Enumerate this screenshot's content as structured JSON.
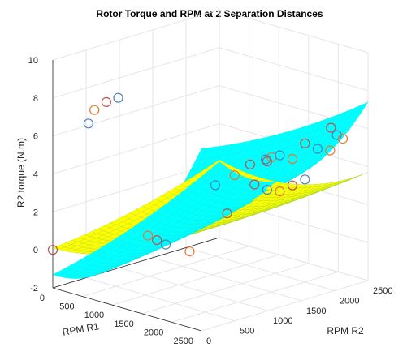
{
  "chart_data": {
    "type": "surface-scatter-3d",
    "title": "Rotor Torque and RPM at 2 Separation Distances",
    "xlabel": "RPM R1",
    "ylabel": "RPM R2",
    "zlabel": "R2 torque (N.m)",
    "xlim": [
      0,
      2500
    ],
    "ylim": [
      0,
      2500
    ],
    "zlim": [
      -2,
      10
    ],
    "x_ticks": [
      0,
      500,
      1000,
      1500,
      2000,
      2500
    ],
    "y_ticks": [
      0,
      500,
      1000,
      1500,
      2000,
      2500
    ],
    "z_ticks": [
      -2,
      0,
      2,
      4,
      6,
      8,
      10
    ],
    "grid": true,
    "surfaces": [
      {
        "name": "",
        "color": "#ffff00",
        "edge_color": "#9acd32"
      },
      {
        "name": "",
        "color": "#00ffff",
        "edge_color": "#00e5e5"
      }
    ],
    "scatter_colors": [
      "#c0504d",
      "#4f81bd",
      "#e07a3a"
    ],
    "scatter": [
      {
        "x": 0,
        "y": 0,
        "z": 0.0
      },
      {
        "x": 600,
        "y": 0,
        "z": 7.2
      },
      {
        "x": 700,
        "y": 0,
        "z": 8.0
      },
      {
        "x": 900,
        "y": 0,
        "z": 8.6
      },
      {
        "x": 1100,
        "y": 0,
        "z": 9.0
      },
      {
        "x": 1600,
        "y": 0,
        "z": 2.2
      },
      {
        "x": 1750,
        "y": 0,
        "z": 2.1
      },
      {
        "x": 1900,
        "y": 0,
        "z": 2.0
      },
      {
        "x": 2300,
        "y": 0,
        "z": 2.0
      },
      {
        "x": 1700,
        "y": 1100,
        "z": 2.3
      },
      {
        "x": 1500,
        "y": 1100,
        "z": 3.6
      },
      {
        "x": 1600,
        "y": 1300,
        "z": 4.0
      },
      {
        "x": 1750,
        "y": 1400,
        "z": 4.6
      },
      {
        "x": 1900,
        "y": 1500,
        "z": 4.9
      },
      {
        "x": 2000,
        "y": 1500,
        "z": 5.1
      },
      {
        "x": 1700,
        "y": 1700,
        "z": 4.4
      },
      {
        "x": 1800,
        "y": 1800,
        "z": 4.7
      },
      {
        "x": 1900,
        "y": 1900,
        "z": 4.5
      },
      {
        "x": 2000,
        "y": 2000,
        "z": 5.3
      },
      {
        "x": 2100,
        "y": 2100,
        "z": 5.0
      },
      {
        "x": 2200,
        "y": 2200,
        "z": 4.9
      },
      {
        "x": 2100,
        "y": 2300,
        "z": 5.9
      },
      {
        "x": 2200,
        "y": 2300,
        "z": 5.6
      },
      {
        "x": 2300,
        "y": 2300,
        "z": 5.5
      },
      {
        "x": 1600,
        "y": 1600,
        "z": 3.2
      },
      {
        "x": 1700,
        "y": 1700,
        "z": 2.9
      },
      {
        "x": 1800,
        "y": 1800,
        "z": 2.8
      },
      {
        "x": 1900,
        "y": 1900,
        "z": 3.1
      },
      {
        "x": 2000,
        "y": 2000,
        "z": 3.4
      }
    ]
  }
}
